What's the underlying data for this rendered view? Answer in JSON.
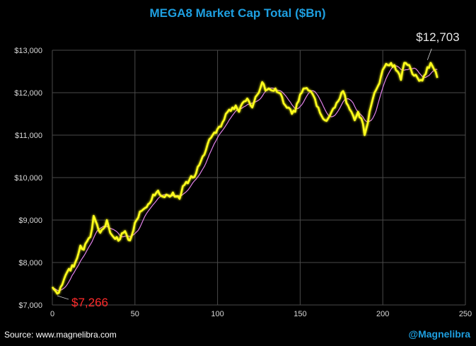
{
  "colors": {
    "background": "#000000",
    "title": "#1e9fe0",
    "main_line": "#ffff1a",
    "ma_line": "#e080e8",
    "grid": "#4a4a4a",
    "tick_text": "#d9d9d9",
    "low_label": "#ff2a2a",
    "high_label": "#e8e8e8"
  },
  "footer": {
    "source": "Source: www.magnelibra.com",
    "handle": "@Magnelibra"
  },
  "chart_data": {
    "type": "line",
    "title": "MEGA8 Market Cap Total ($Bn)",
    "xlabel": "",
    "ylabel": "",
    "xlim": [
      0,
      250
    ],
    "ylim": [
      7000,
      13000
    ],
    "x_ticks": [
      0,
      50,
      100,
      150,
      200,
      250
    ],
    "y_ticks": [
      7000,
      8000,
      9000,
      10000,
      11000,
      12000,
      13000
    ],
    "y_tick_labels": [
      "$7,000",
      "$8,000",
      "$9,000",
      "$10,000",
      "$11,000",
      "$12,000",
      "$13,000"
    ],
    "grid": true,
    "legend": "none",
    "annotations": [
      {
        "text": "$7,266",
        "x": 3,
        "y": 7266,
        "role": "low"
      },
      {
        "text": "$12,703",
        "x": 227,
        "y": 12703,
        "role": "high"
      }
    ],
    "anchors_x": [
      0,
      3,
      5,
      8,
      10,
      13,
      15,
      17,
      19,
      21,
      23,
      25,
      27,
      29,
      31,
      33,
      35,
      37,
      39,
      41,
      43,
      45,
      47,
      49,
      51,
      53,
      55,
      57,
      59,
      61,
      63,
      65,
      67,
      69,
      71,
      73,
      75,
      77,
      79,
      81,
      83,
      85,
      87,
      89,
      91,
      93,
      95,
      97,
      99,
      101,
      103,
      105,
      107,
      109,
      111,
      113,
      115,
      117,
      119,
      121,
      123,
      125,
      127,
      129,
      131,
      133,
      135,
      137,
      139,
      141,
      143,
      145,
      147,
      149,
      151,
      153,
      155,
      157,
      159,
      161,
      163,
      165,
      167,
      169,
      171,
      173,
      175,
      177,
      179,
      181,
      183,
      185,
      187,
      189,
      191,
      193,
      195,
      197,
      199,
      201,
      203,
      205,
      207,
      209,
      211,
      213,
      215,
      217,
      219,
      221,
      223,
      225,
      227,
      229,
      231,
      233
    ],
    "anchors_y": [
      7420,
      7266,
      7420,
      7700,
      7850,
      7900,
      8100,
      8400,
      8300,
      8500,
      8600,
      9100,
      8900,
      8700,
      8800,
      9000,
      8700,
      8600,
      8600,
      8550,
      8700,
      8650,
      8520,
      8750,
      9000,
      9200,
      9250,
      9300,
      9400,
      9600,
      9650,
      9600,
      9550,
      9600,
      9550,
      9650,
      9550,
      9500,
      9800,
      9900,
      9950,
      10000,
      10100,
      10300,
      10500,
      10650,
      10900,
      11000,
      11050,
      11200,
      11300,
      11500,
      11600,
      11650,
      11700,
      11550,
      11750,
      11800,
      11800,
      11650,
      11900,
      12000,
      12250,
      12050,
      12100,
      12050,
      12100,
      12000,
      11900,
      11700,
      11650,
      11500,
      11550,
      11800,
      12000,
      12100,
      12050,
      12000,
      11850,
      11650,
      11450,
      11350,
      11400,
      11550,
      11650,
      11800,
      12000,
      11950,
      11700,
      11550,
      11350,
      11550,
      11400,
      11000,
      11300,
      11700,
      12000,
      12150,
      12400,
      12600,
      12650,
      12700,
      12650,
      12500,
      12300,
      12703,
      12650,
      12550,
      12400,
      12350,
      12300,
      12400,
      12600,
      12703,
      12550,
      12350
    ]
  }
}
